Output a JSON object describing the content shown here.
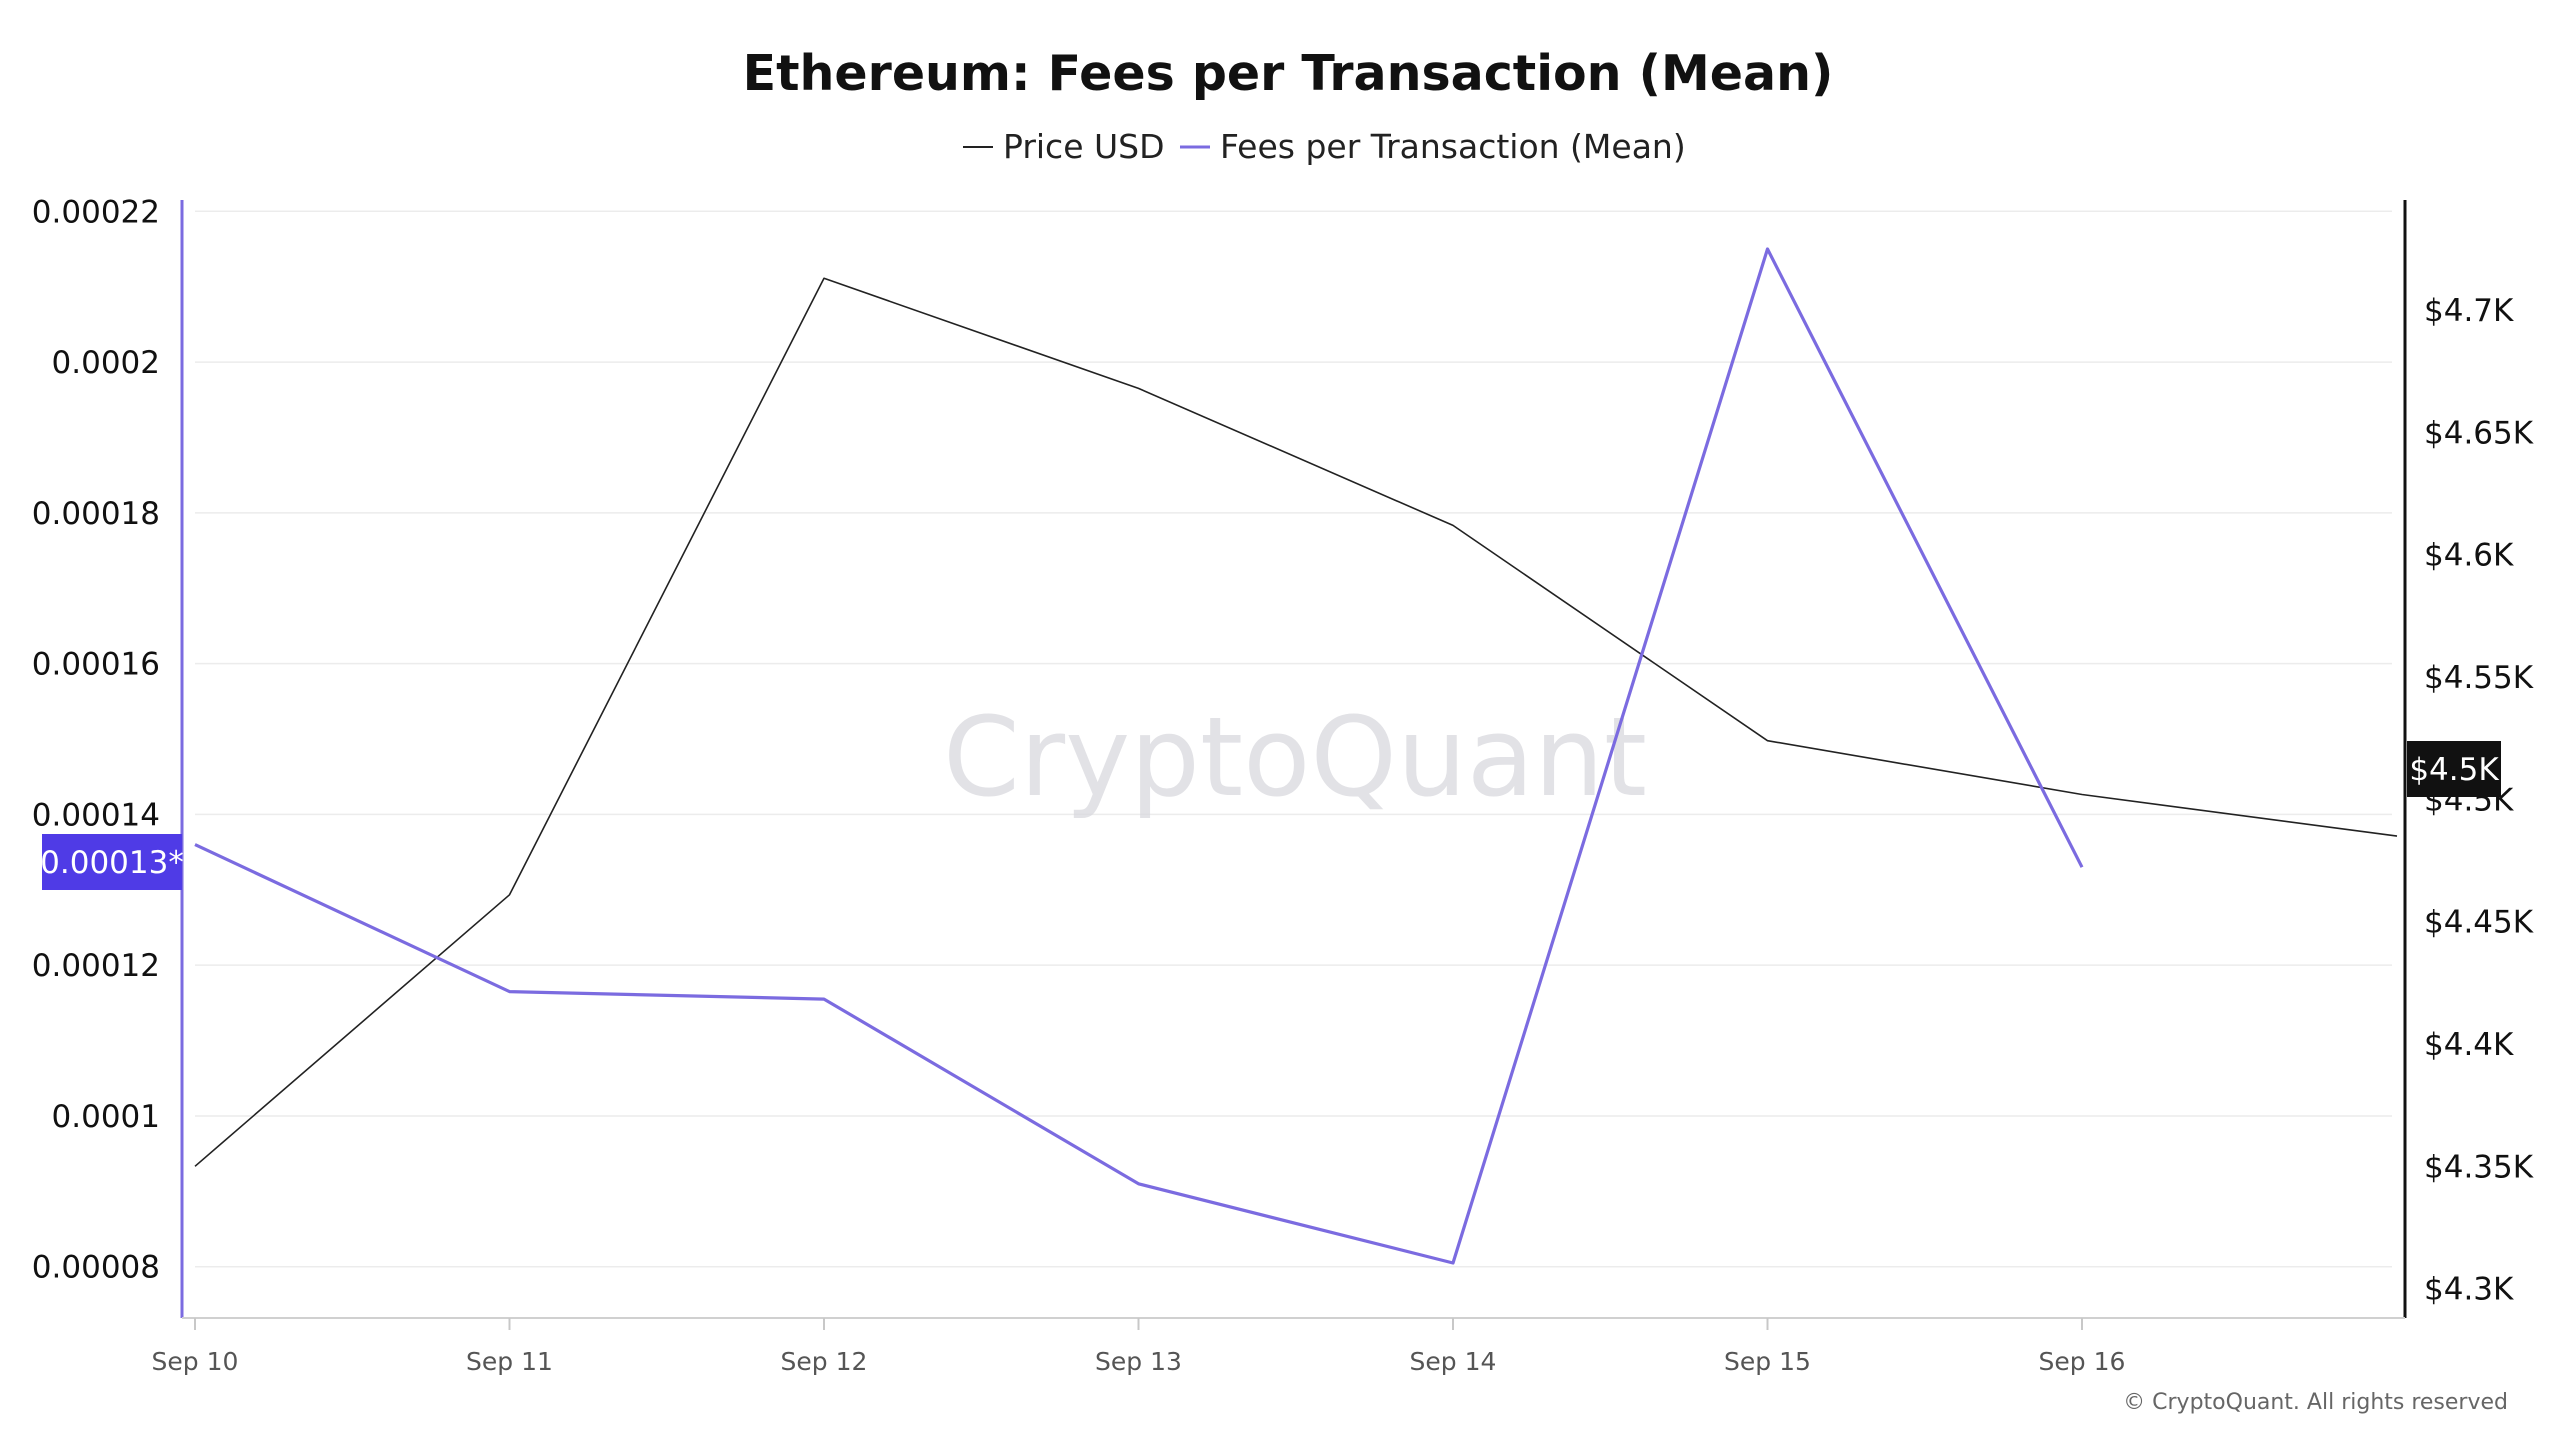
{
  "title": "Ethereum: Fees per Transaction (Mean)",
  "legend": [
    {
      "label": "Price USD",
      "color": "#222222"
    },
    {
      "label": "Fees per Transaction (Mean)",
      "color": "#7b6be0"
    }
  ],
  "watermark": "CryptoQuant",
  "copyright": "© CryptoQuant. All rights reserved",
  "colors": {
    "fees": "#7b6be0",
    "price": "#222222",
    "fees_badge": "#4f3be6",
    "price_badge": "#111111",
    "grid": "#ececec"
  },
  "chart_data": {
    "type": "line",
    "title": "Ethereum: Fees per Transaction (Mean)",
    "xlabel": "",
    "x": [
      "Sep 10",
      "Sep 11",
      "Sep 12",
      "Sep 13",
      "Sep 14",
      "Sep 15",
      "Sep 16",
      ""
    ],
    "x_tick_labels": [
      "Sep 10",
      "Sep 11",
      "Sep 12",
      "Sep 13",
      "Sep 14",
      "Sep 15",
      "Sep 16"
    ],
    "y_left": {
      "ticks": [
        8e-05,
        0.0001,
        0.00012,
        0.00014,
        0.00016,
        0.00018,
        0.0002,
        0.00022
      ],
      "tick_labels": [
        "0.00008",
        "0.0001",
        "0.00012",
        "0.00014",
        "0.00016",
        "0.00018",
        "0.0002",
        "0.00022"
      ],
      "range": [
        7.32e-05,
        0.0002215
      ]
    },
    "y_right": {
      "ticks": [
        4300,
        4350,
        4400,
        4450,
        4500,
        4550,
        4600,
        4650,
        4700
      ],
      "tick_labels": [
        "$4.3K",
        "$4.35K",
        "$4.4K",
        "$4.45K",
        "$4.5K",
        "$4.55K",
        "$4.6K",
        "$4.65K",
        "$4.7K"
      ],
      "range": [
        4288,
        4745
      ]
    },
    "series": [
      {
        "name": "Price USD",
        "axis": "right",
        "values": [
          4350,
          4461,
          4713,
          4668,
          4612,
          4524,
          4502,
          4485
        ]
      },
      {
        "name": "Fees per Transaction (Mean)",
        "axis": "left",
        "values": [
          0.000136,
          0.0001165,
          0.0001155,
          9.1e-05,
          8.05e-05,
          0.000215,
          0.000133,
          null
        ]
      }
    ],
    "current_value_labels": {
      "left": "0.00013*",
      "right": "$4.5K"
    },
    "grid": true,
    "legend_position": "top-center"
  }
}
